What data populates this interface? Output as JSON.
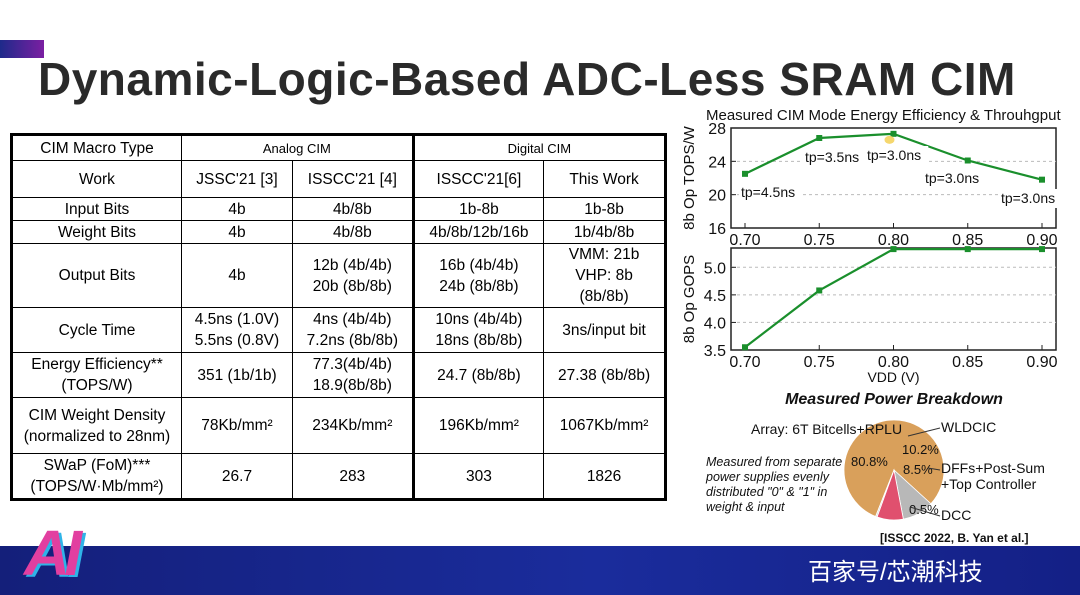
{
  "slide": {
    "title": "Dynamic-Logic-Based ADC-Less SRAM CIM",
    "citation": "[ISSCC 2022, B. Yan et al.]",
    "watermark": "百家号/芯潮科技"
  },
  "logo": {
    "text": "AI"
  },
  "table": {
    "header_label": "CIM Macro Type",
    "groups": [
      "Analog CIM",
      "Digital CIM"
    ],
    "rows": [
      {
        "label": [
          "Work"
        ],
        "cells": [
          [
            "JSSC'21 [3]"
          ],
          [
            "ISSCC'21 [4]"
          ],
          [
            "ISSCC'21[6]"
          ],
          [
            "This Work"
          ]
        ]
      },
      {
        "label": [
          "Input Bits"
        ],
        "cells": [
          [
            "4b"
          ],
          [
            "4b/8b"
          ],
          [
            "1b-8b"
          ],
          [
            "1b-8b"
          ]
        ]
      },
      {
        "label": [
          "Weight Bits"
        ],
        "cells": [
          [
            "4b"
          ],
          [
            "4b/8b"
          ],
          [
            "4b/8b/12b/16b"
          ],
          [
            "1b/4b/8b"
          ]
        ]
      },
      {
        "label": [
          "Output Bits"
        ],
        "cells": [
          [
            "4b"
          ],
          [
            "12b (4b/4b)",
            "20b (8b/8b)"
          ],
          [
            "16b (4b/4b)",
            "24b (8b/8b)"
          ],
          [
            "VMM: 21b",
            "VHP: 8b",
            "(8b/8b)"
          ]
        ]
      },
      {
        "label": [
          "Cycle Time"
        ],
        "cells": [
          [
            "4.5ns (1.0V)",
            "5.5ns (0.8V)"
          ],
          [
            "4ns (4b/4b)",
            "7.2ns (8b/8b)"
          ],
          [
            "10ns (4b/4b)",
            "18ns (8b/8b)"
          ],
          [
            "3ns/input bit"
          ]
        ]
      },
      {
        "label": [
          "Energy Efficiency**",
          "(TOPS/W)"
        ],
        "cells": [
          [
            "351 (1b/1b)"
          ],
          [
            "77.3(4b/4b)",
            "18.9(8b/8b)"
          ],
          [
            "24.7 (8b/8b)"
          ],
          [
            "27.38 (8b/8b)"
          ]
        ]
      },
      {
        "label": [
          "CIM Weight Density",
          "(normalized to 28nm)"
        ],
        "cells": [
          [
            "78Kb/mm²"
          ],
          [
            "234Kb/mm²"
          ],
          [
            "196Kb/mm²"
          ],
          [
            "1067Kb/mm²"
          ]
        ]
      },
      {
        "label": [
          "SWaP (FoM)***",
          "(TOPS/W·Mb/mm²)"
        ],
        "cells": [
          [
            "26.7"
          ],
          [
            "283"
          ],
          [
            "303"
          ],
          [
            "1826"
          ]
        ]
      }
    ]
  },
  "chart_data": [
    {
      "type": "line",
      "title": "Measured CIM Mode Energy Efficiency & Throuhgput",
      "xlabel": "",
      "ylabel": "8b Op TOPS/W",
      "x": [
        0.7,
        0.75,
        0.8,
        0.85,
        0.9
      ],
      "x_ticks": [
        "0.70",
        "0.75",
        "0.80",
        "0.85",
        "0.90"
      ],
      "y_ticks": [
        "16",
        "20",
        "24",
        "28"
      ],
      "ylim": [
        16,
        28
      ],
      "series": [
        {
          "values": [
            22.5,
            26.8,
            27.3,
            24.1,
            21.8
          ]
        }
      ],
      "annotations": [
        "tp=4.5ns",
        "tp=3.5ns",
        "tp=3.0ns",
        "tp=3.0ns",
        "tp=3.0ns"
      ],
      "grid": true,
      "color": "#1a8f2c"
    },
    {
      "type": "line",
      "title": "",
      "xlabel": "VDD (V)",
      "ylabel": "8b Op GOPS",
      "x": [
        0.7,
        0.75,
        0.8,
        0.85,
        0.9
      ],
      "x_ticks": [
        "0.70",
        "0.75",
        "0.80",
        "0.85",
        "0.90"
      ],
      "y_ticks": [
        "3.5",
        "4.0",
        "4.5",
        "5.0"
      ],
      "ylim": [
        3.5,
        5.35
      ],
      "series": [
        {
          "values": [
            3.55,
            4.58,
            5.33,
            5.33,
            5.33
          ]
        }
      ],
      "grid": true,
      "color": "#1a8f2c"
    },
    {
      "type": "pie",
      "title": "Measured Power Breakdown",
      "slices": [
        {
          "label": "Array: 6T Bitcells+RPLU",
          "value": 80.8,
          "value_label": "80.8%",
          "color": "#d9a05b"
        },
        {
          "label": "WLDCIC",
          "value": 10.2,
          "value_label": "10.2%",
          "color": "#b8b8b8"
        },
        {
          "label": "DFFs+Post-Sum +Top Controller",
          "value": 8.5,
          "value_label": "8.5%",
          "color": "#e0506e"
        },
        {
          "label": "DCC",
          "value": 0.5,
          "value_label": "0.5%",
          "color": "#d9d9d9"
        }
      ],
      "note": [
        "Measured from separate",
        "power supplies evenly",
        "distributed \"0\" & \"1\" in",
        "weight & input"
      ]
    }
  ]
}
